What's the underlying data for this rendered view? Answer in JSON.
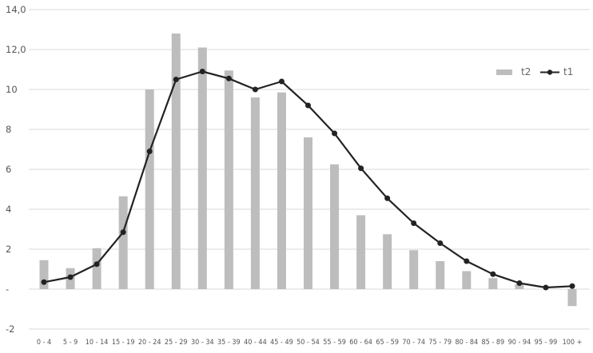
{
  "chart_data": {
    "type": "bar",
    "categories": [
      "0 - 4",
      "5 - 9",
      "10 - 14",
      "15 - 19",
      "20 - 24",
      "25 - 29",
      "30 - 34",
      "35 - 39",
      "40 - 44",
      "45 - 49",
      "50 - 54",
      "55 - 59",
      "60 - 64",
      "65 - 59",
      "70 - 74",
      "75 - 79",
      "80 - 84",
      "85 - 89",
      "90 - 94",
      "95 - 99",
      "100 +"
    ],
    "series": [
      {
        "name": "t2",
        "type": "bar",
        "color": "#bdbdbd",
        "values": [
          1.45,
          1.05,
          2.05,
          4.65,
          10.0,
          12.8,
          12.1,
          10.95,
          9.6,
          9.85,
          7.6,
          6.25,
          3.7,
          2.75,
          1.95,
          1.4,
          0.9,
          0.55,
          0.25,
          0.0,
          -0.85
        ]
      },
      {
        "name": "t1",
        "type": "line",
        "color": "#222222",
        "values": [
          0.35,
          0.6,
          1.25,
          2.85,
          6.9,
          10.5,
          10.9,
          10.55,
          10.0,
          10.4,
          9.2,
          7.8,
          6.05,
          4.55,
          3.3,
          2.3,
          1.4,
          0.75,
          0.3,
          0.08,
          0.15
        ]
      }
    ],
    "y_ticks": [
      "14,0",
      "12,0",
      "10",
      "8",
      "6",
      "4",
      "2",
      "-",
      "-2"
    ],
    "y_tick_values": [
      14,
      12,
      10,
      8,
      6,
      4,
      2,
      0,
      -2
    ],
    "ylim": [
      -2,
      14
    ],
    "grid": true,
    "legend": "top-right",
    "title": "",
    "xlabel": "",
    "ylabel": ""
  }
}
